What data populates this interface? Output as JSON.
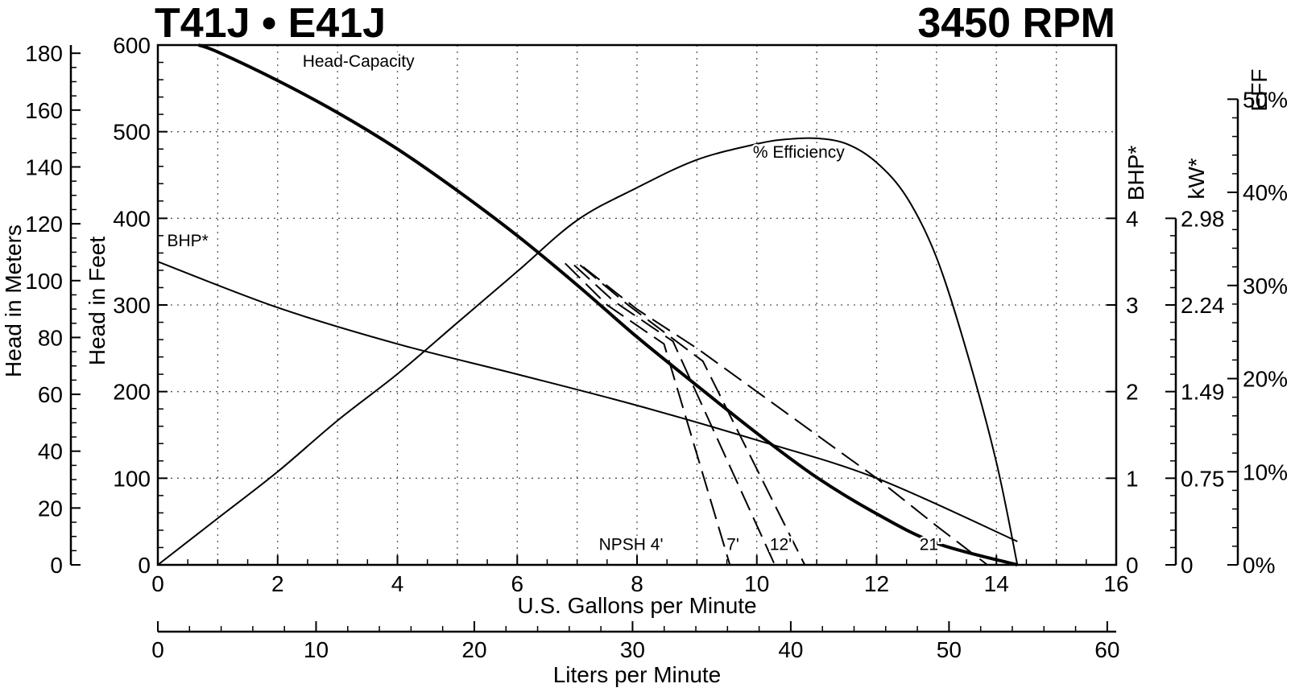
{
  "title_left": "T41J • E41J",
  "title_right": "3450 RPM",
  "chart_data": {
    "type": "line",
    "x_axis": {
      "label": "U.S. Gallons per Minute",
      "range": [
        0,
        16
      ],
      "ticks": [
        0,
        2,
        4,
        6,
        8,
        10,
        12,
        14,
        16
      ]
    },
    "x2_axis": {
      "label": "Liters per Minute",
      "range": [
        0,
        60.567
      ],
      "ticks": [
        0,
        10,
        20,
        30,
        40,
        50,
        60
      ]
    },
    "y_feet": {
      "label": "Head in Feet",
      "range": [
        0,
        600
      ],
      "ticks": [
        0,
        100,
        200,
        300,
        400,
        500,
        600
      ]
    },
    "y_meters": {
      "label": "Head in Meters",
      "range": [
        0,
        182.88
      ],
      "ticks": [
        0,
        20,
        40,
        60,
        80,
        100,
        120,
        140,
        160,
        180
      ]
    },
    "y_bhp": {
      "label": "BHP*",
      "ticks": [
        0,
        1,
        2,
        3,
        4
      ]
    },
    "y_kw": {
      "label": "kW*",
      "tick_labels": [
        "0",
        "0.75",
        "1.49",
        "2.24",
        "2.98"
      ],
      "tick_bhp": [
        0,
        1,
        2,
        3,
        4
      ]
    },
    "y_eff": {
      "label": "EFF",
      "tick_labels": [
        "0%",
        "10%",
        "20%",
        "30%",
        "40%",
        "50%"
      ],
      "tick_values": [
        0,
        10,
        20,
        30,
        40,
        50
      ]
    },
    "series": [
      {
        "name": "Head-Capacity",
        "unit": "feet",
        "style": "bold",
        "points": [
          [
            0.68,
            600
          ],
          [
            1,
            592
          ],
          [
            2,
            559
          ],
          [
            3,
            522
          ],
          [
            4,
            480
          ],
          [
            5,
            432
          ],
          [
            6,
            380
          ],
          [
            7,
            323
          ],
          [
            8,
            263
          ],
          [
            9,
            207
          ],
          [
            10,
            152
          ],
          [
            11,
            101
          ],
          [
            12,
            59
          ],
          [
            13,
            25
          ],
          [
            14.35,
            0
          ]
        ]
      },
      {
        "name": "% Efficiency",
        "unit": "percent",
        "style": "solid",
        "points": [
          [
            0,
            0
          ],
          [
            1,
            5
          ],
          [
            2,
            10
          ],
          [
            3,
            15.5
          ],
          [
            4,
            20.5
          ],
          [
            5,
            26
          ],
          [
            6,
            31.5
          ],
          [
            7,
            37
          ],
          [
            8,
            40.5
          ],
          [
            9,
            43.5
          ],
          [
            10,
            45.2
          ],
          [
            10.5,
            45.7
          ],
          [
            11,
            45.8
          ],
          [
            11.5,
            45.2
          ],
          [
            12,
            43.2
          ],
          [
            12.5,
            39.5
          ],
          [
            13,
            33
          ],
          [
            13.5,
            23
          ],
          [
            14,
            11
          ],
          [
            14.35,
            0
          ]
        ]
      },
      {
        "name": "BHP*",
        "unit": "bhp",
        "style": "solid",
        "points": [
          [
            0,
            3.5
          ],
          [
            2,
            2.97
          ],
          [
            4,
            2.55
          ],
          [
            6,
            2.2
          ],
          [
            8,
            1.84
          ],
          [
            10,
            1.44
          ],
          [
            12,
            1.0
          ],
          [
            14.35,
            0.27
          ]
        ]
      },
      {
        "name": "NPSH 4'",
        "unit": "feet",
        "style": "dashed",
        "points": [
          [
            6.8,
            348
          ],
          [
            7.5,
            300
          ],
          [
            8.45,
            255
          ],
          [
            9.55,
            0
          ]
        ]
      },
      {
        "name": "7'",
        "unit": "feet",
        "style": "dashed",
        "points": [
          [
            6.95,
            346
          ],
          [
            7.6,
            305
          ],
          [
            8.6,
            258
          ],
          [
            10.3,
            0
          ]
        ]
      },
      {
        "name": "12'",
        "unit": "feet",
        "style": "dashed",
        "points": [
          [
            7.05,
            346
          ],
          [
            7.85,
            300
          ],
          [
            9.1,
            235
          ],
          [
            10.8,
            0
          ]
        ]
      },
      {
        "name": "21'",
        "unit": "feet",
        "style": "dashed",
        "points": [
          [
            7.1,
            344
          ],
          [
            8,
            295
          ],
          [
            9,
            250
          ],
          [
            10,
            200
          ],
          [
            11,
            150
          ],
          [
            12,
            100
          ],
          [
            13,
            45
          ],
          [
            13.85,
            0
          ]
        ]
      }
    ],
    "annotations": [
      {
        "text": "Head-Capacity",
        "x": 3.35,
        "y_feet": 575
      },
      {
        "text": "% Efficiency",
        "x": 10.7,
        "y_feet": 470
      },
      {
        "text": "BHP*",
        "x": 0.5,
        "y_feet": 368
      },
      {
        "text": "NPSH 4'",
        "x": 7.9,
        "y_feet": 17
      },
      {
        "text": "7'",
        "x": 9.6,
        "y_feet": 17
      },
      {
        "text": "12'",
        "x": 10.4,
        "y_feet": 17
      },
      {
        "text": "21'",
        "x": 12.9,
        "y_feet": 17
      }
    ],
    "grid": true
  },
  "colors": {
    "ink": "#000000",
    "background": "#ffffff",
    "grid": "#555555"
  }
}
